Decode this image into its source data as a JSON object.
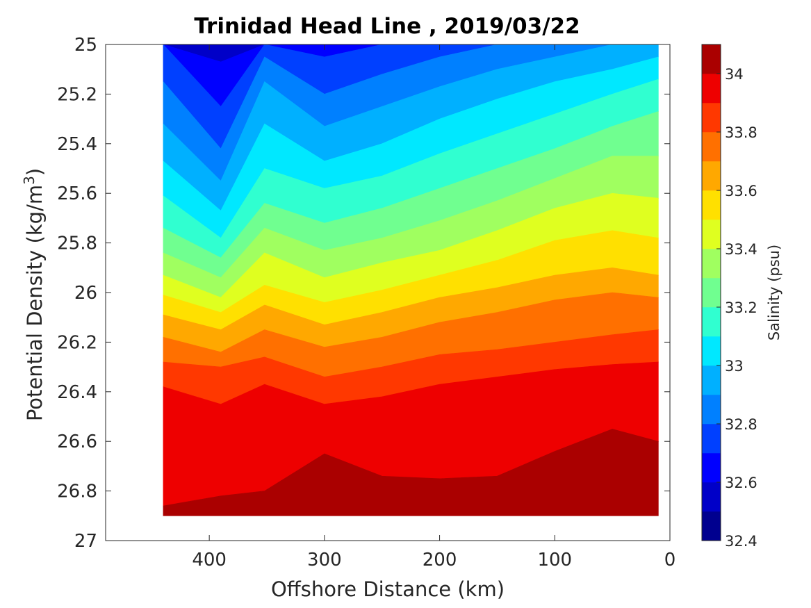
{
  "chart_data": {
    "type": "heatmap",
    "title": "Trinidad Head Line , 2019/03/22",
    "xlabel": "Offshore Distance (km)",
    "ylabel_main": "Potential Density (kg/m",
    "ylabel_sup": "3",
    "ylabel_close": ")",
    "colorbar_label": "Salinity (psu)",
    "xlim": [
      490,
      0
    ],
    "x_reversed": true,
    "ylim": [
      25,
      27
    ],
    "y_reversed": true,
    "x_ticks": [
      400,
      300,
      200,
      100,
      0
    ],
    "x_tick_labels": [
      "400",
      "300",
      "200",
      "100",
      "0"
    ],
    "y_ticks": [
      25,
      25.2,
      25.4,
      25.6,
      25.8,
      26,
      26.2,
      26.4,
      26.6,
      26.8,
      27
    ],
    "y_tick_labels": [
      "25",
      "25.2",
      "25.4",
      "25.6",
      "25.8",
      "26",
      "26.2",
      "26.4",
      "26.6",
      "26.8",
      "27"
    ],
    "colorbar_range": [
      32.4,
      34.1
    ],
    "colorbar_ticks": [
      32.4,
      32.6,
      32.8,
      33,
      33.2,
      33.4,
      33.6,
      33.8,
      34
    ],
    "colorbar_tick_labels": [
      "32.4",
      "32.6",
      "32.8",
      "33",
      "33.2",
      "33.4",
      "33.6",
      "33.8",
      "34"
    ],
    "contour_levels": [
      32.4,
      32.5,
      32.6,
      32.7,
      32.8,
      32.9,
      33.0,
      33.1,
      33.2,
      33.3,
      33.4,
      33.5,
      33.6,
      33.7,
      33.8,
      33.9,
      34.0,
      34.1
    ],
    "band_colors": [
      "#00008F",
      "#0000C8",
      "#0000FF",
      "#0040FF",
      "#0080FF",
      "#00B0FF",
      "#00E8FF",
      "#30FFD0",
      "#70FF90",
      "#A0FF60",
      "#DFFF20",
      "#FFE000",
      "#FFA800",
      "#FF7000",
      "#FF3800",
      "#EE0000",
      "#AA0000"
    ],
    "data_extent": {
      "x_min_km": 10,
      "x_max_km": 440,
      "sigma_min": 25,
      "sigma_max": 26.9
    },
    "x_stations_km": [
      440,
      390,
      352,
      300,
      250,
      200,
      150,
      100,
      50,
      10
    ],
    "isohalines": [
      {
        "level": 32.6,
        "sigma": [
          null,
          25.07,
          null,
          null,
          null,
          null,
          null,
          null,
          null,
          null
        ]
      },
      {
        "level": 32.7,
        "sigma": [
          null,
          25.25,
          null,
          25.05,
          null,
          null,
          null,
          null,
          null,
          null
        ]
      },
      {
        "level": 32.8,
        "sigma": [
          25.15,
          25.42,
          25.05,
          25.2,
          25.12,
          25.05,
          null,
          null,
          null,
          null
        ]
      },
      {
        "level": 32.9,
        "sigma": [
          25.32,
          25.55,
          25.15,
          25.33,
          25.25,
          25.17,
          25.1,
          25.05,
          null,
          null
        ]
      },
      {
        "level": 33.0,
        "sigma": [
          25.47,
          25.67,
          25.32,
          25.47,
          25.4,
          25.3,
          25.22,
          25.15,
          25.1,
          25.05
        ]
      },
      {
        "level": 33.1,
        "sigma": [
          25.61,
          25.78,
          25.5,
          25.58,
          25.53,
          25.44,
          25.36,
          25.28,
          25.2,
          25.14
        ]
      },
      {
        "level": 33.2,
        "sigma": [
          25.74,
          25.86,
          25.64,
          25.72,
          25.66,
          25.58,
          25.5,
          25.42,
          25.33,
          25.27
        ]
      },
      {
        "level": 33.3,
        "sigma": [
          25.84,
          25.94,
          25.74,
          25.83,
          25.78,
          25.71,
          25.63,
          25.54,
          25.45,
          25.45
        ]
      },
      {
        "level": 33.4,
        "sigma": [
          25.93,
          26.02,
          25.84,
          25.94,
          25.88,
          25.83,
          25.75,
          25.66,
          25.6,
          25.62
        ]
      },
      {
        "level": 33.5,
        "sigma": [
          26.01,
          26.08,
          25.97,
          26.04,
          25.99,
          25.93,
          25.87,
          25.79,
          25.75,
          25.78
        ]
      },
      {
        "level": 33.6,
        "sigma": [
          26.09,
          26.15,
          26.05,
          26.13,
          26.08,
          26.02,
          25.98,
          25.93,
          25.9,
          25.93
        ]
      },
      {
        "level": 33.7,
        "sigma": [
          26.18,
          26.24,
          26.15,
          26.22,
          26.18,
          26.12,
          26.08,
          26.03,
          26.0,
          26.02
        ]
      },
      {
        "level": 33.8,
        "sigma": [
          26.28,
          26.3,
          26.26,
          26.34,
          26.3,
          26.25,
          26.23,
          26.2,
          26.17,
          26.15
        ]
      },
      {
        "level": 33.9,
        "sigma": [
          26.38,
          26.45,
          26.37,
          26.45,
          26.42,
          26.37,
          26.34,
          26.31,
          26.29,
          26.28
        ]
      },
      {
        "level": 34.0,
        "sigma": [
          26.86,
          26.82,
          26.8,
          26.65,
          26.74,
          26.75,
          26.74,
          26.64,
          26.55,
          26.6
        ]
      }
    ]
  }
}
